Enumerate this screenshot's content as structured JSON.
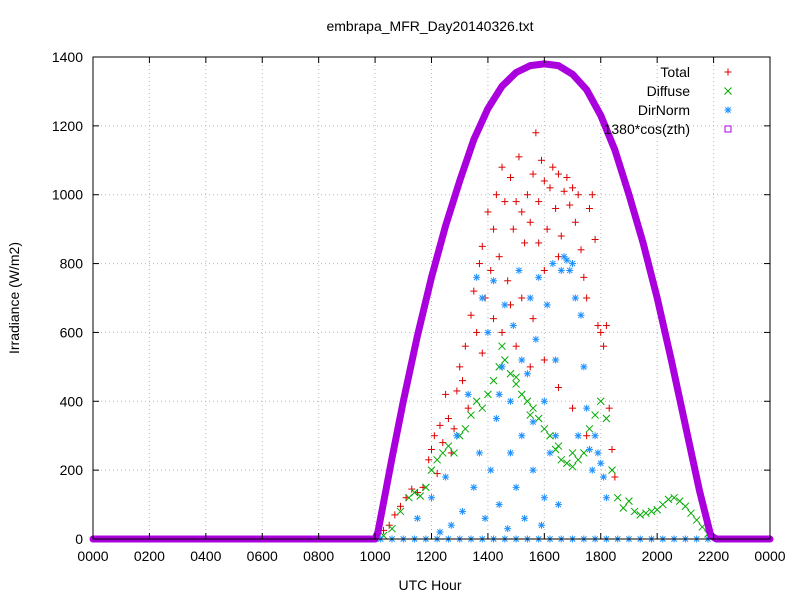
{
  "chart_data": {
    "type": "scatter",
    "title": "embrapa_MFR_Day20140326.txt",
    "xlabel": "UTC Hour",
    "ylabel": "Irradiance (W/m2)",
    "xlim": [
      0,
      2400
    ],
    "ylim": [
      0,
      1400
    ],
    "grid": true,
    "legend_position": "top-right",
    "x_tick_labels": [
      "0000",
      "0200",
      "0400",
      "0600",
      "0800",
      "1000",
      "1200",
      "1400",
      "1600",
      "1800",
      "2000",
      "2200",
      "0000"
    ],
    "y_tick_labels": [
      "0",
      "200",
      "400",
      "600",
      "800",
      "1000",
      "1200",
      "1400"
    ],
    "colors": {
      "Total": "#dd0000",
      "Diffuse": "#00aa00",
      "DirNorm": "#1e90ff",
      "1380*cos(zth)": "#aa00dd"
    },
    "series": [
      {
        "name": "Total",
        "marker": "+",
        "points": [
          [
            1010,
            15
          ],
          [
            1030,
            25
          ],
          [
            1050,
            40
          ],
          [
            1070,
            70
          ],
          [
            1090,
            95
          ],
          [
            1110,
            120
          ],
          [
            1130,
            145
          ],
          [
            1150,
            135
          ],
          [
            1170,
            150
          ],
          [
            1190,
            230
          ],
          [
            1200,
            260
          ],
          [
            1210,
            300
          ],
          [
            1220,
            190
          ],
          [
            1230,
            330
          ],
          [
            1240,
            280
          ],
          [
            1250,
            420
          ],
          [
            1260,
            350
          ],
          [
            1270,
            250
          ],
          [
            1280,
            320
          ],
          [
            1290,
            430
          ],
          [
            1300,
            500
          ],
          [
            1310,
            460
          ],
          [
            1320,
            560
          ],
          [
            1330,
            380
          ],
          [
            1340,
            650
          ],
          [
            1350,
            720
          ],
          [
            1360,
            600
          ],
          [
            1370,
            800
          ],
          [
            1380,
            850
          ],
          [
            1390,
            700
          ],
          [
            1400,
            950
          ],
          [
            1410,
            780
          ],
          [
            1420,
            900
          ],
          [
            1430,
            1000
          ],
          [
            1440,
            820
          ],
          [
            1450,
            1080
          ],
          [
            1460,
            980
          ],
          [
            1470,
            750
          ],
          [
            1480,
            1050
          ],
          [
            1490,
            900
          ],
          [
            1500,
            980
          ],
          [
            1510,
            1110
          ],
          [
            1520,
            950
          ],
          [
            1530,
            860
          ],
          [
            1540,
            1000
          ],
          [
            1550,
            920
          ],
          [
            1560,
            1060
          ],
          [
            1570,
            1180
          ],
          [
            1580,
            980
          ],
          [
            1590,
            1100
          ],
          [
            1600,
            1040
          ],
          [
            1610,
            900
          ],
          [
            1620,
            1020
          ],
          [
            1630,
            1080
          ],
          [
            1640,
            960
          ],
          [
            1650,
            1060
          ],
          [
            1660,
            880
          ],
          [
            1670,
            1010
          ],
          [
            1680,
            1050
          ],
          [
            1690,
            970
          ],
          [
            1700,
            1020
          ],
          [
            1710,
            920
          ],
          [
            1720,
            1000
          ],
          [
            1730,
            840
          ],
          [
            1740,
            760
          ],
          [
            1750,
            700
          ],
          [
            1760,
            960
          ],
          [
            1770,
            1000
          ],
          [
            1780,
            870
          ],
          [
            1790,
            620
          ],
          [
            1800,
            600
          ],
          [
            1810,
            560
          ],
          [
            1820,
            620
          ],
          [
            1830,
            380
          ],
          [
            1840,
            260
          ],
          [
            1850,
            180
          ],
          [
            1450,
            600
          ],
          [
            1500,
            560
          ],
          [
            1550,
            500
          ],
          [
            1600,
            520
          ],
          [
            1650,
            440
          ],
          [
            1700,
            380
          ],
          [
            1750,
            300
          ],
          [
            1600,
            780
          ],
          [
            1650,
            820
          ],
          [
            1520,
            700
          ],
          [
            1560,
            640
          ],
          [
            1420,
            640
          ],
          [
            1380,
            540
          ],
          [
            1480,
            680
          ],
          [
            1580,
            860
          ]
        ]
      },
      {
        "name": "Diffuse",
        "marker": "x",
        "points": [
          [
            1030,
            10
          ],
          [
            1060,
            30
          ],
          [
            1090,
            80
          ],
          [
            1120,
            120
          ],
          [
            1140,
            135
          ],
          [
            1160,
            125
          ],
          [
            1180,
            150
          ],
          [
            1200,
            200
          ],
          [
            1220,
            230
          ],
          [
            1240,
            250
          ],
          [
            1260,
            270
          ],
          [
            1280,
            250
          ],
          [
            1300,
            300
          ],
          [
            1320,
            320
          ],
          [
            1340,
            360
          ],
          [
            1360,
            400
          ],
          [
            1380,
            380
          ],
          [
            1400,
            420
          ],
          [
            1420,
            460
          ],
          [
            1440,
            500
          ],
          [
            1460,
            520
          ],
          [
            1480,
            480
          ],
          [
            1500,
            450
          ],
          [
            1520,
            420
          ],
          [
            1540,
            400
          ],
          [
            1560,
            380
          ],
          [
            1580,
            350
          ],
          [
            1600,
            320
          ],
          [
            1620,
            300
          ],
          [
            1640,
            260
          ],
          [
            1660,
            230
          ],
          [
            1680,
            220
          ],
          [
            1700,
            210
          ],
          [
            1720,
            230
          ],
          [
            1740,
            250
          ],
          [
            1760,
            320
          ],
          [
            1780,
            360
          ],
          [
            1800,
            400
          ],
          [
            1820,
            350
          ],
          [
            1840,
            200
          ],
          [
            1860,
            120
          ],
          [
            1880,
            90
          ],
          [
            1900,
            110
          ],
          [
            1920,
            80
          ],
          [
            1940,
            70
          ],
          [
            1960,
            75
          ],
          [
            1980,
            80
          ],
          [
            2000,
            85
          ],
          [
            2020,
            100
          ],
          [
            2040,
            115
          ],
          [
            2060,
            120
          ],
          [
            2080,
            110
          ],
          [
            2100,
            95
          ],
          [
            2120,
            75
          ],
          [
            2140,
            55
          ],
          [
            2160,
            35
          ],
          [
            2180,
            15
          ],
          [
            1450,
            560
          ],
          [
            1500,
            470
          ],
          [
            1550,
            360
          ],
          [
            1650,
            270
          ],
          [
            1700,
            250
          ]
        ]
      },
      {
        "name": "DirNorm",
        "marker": "*",
        "points": [
          [
            1020,
            0
          ],
          [
            1060,
            0
          ],
          [
            1100,
            0
          ],
          [
            1140,
            0
          ],
          [
            1180,
            0
          ],
          [
            1220,
            0
          ],
          [
            1260,
            0
          ],
          [
            1300,
            0
          ],
          [
            1340,
            0
          ],
          [
            1380,
            0
          ],
          [
            1420,
            0
          ],
          [
            1460,
            0
          ],
          [
            1500,
            0
          ],
          [
            1540,
            0
          ],
          [
            1580,
            0
          ],
          [
            1620,
            0
          ],
          [
            1660,
            0
          ],
          [
            1700,
            0
          ],
          [
            1740,
            0
          ],
          [
            1780,
            0
          ],
          [
            1820,
            0
          ],
          [
            1860,
            0
          ],
          [
            1900,
            0
          ],
          [
            1940,
            0
          ],
          [
            1980,
            0
          ],
          [
            2020,
            0
          ],
          [
            2060,
            0
          ],
          [
            2100,
            0
          ],
          [
            2140,
            0
          ],
          [
            2180,
            0
          ],
          [
            1150,
            60
          ],
          [
            1200,
            120
          ],
          [
            1230,
            20
          ],
          [
            1250,
            180
          ],
          [
            1270,
            40
          ],
          [
            1290,
            300
          ],
          [
            1310,
            80
          ],
          [
            1330,
            420
          ],
          [
            1350,
            150
          ],
          [
            1360,
            760
          ],
          [
            1370,
            250
          ],
          [
            1380,
            700
          ],
          [
            1390,
            60
          ],
          [
            1400,
            600
          ],
          [
            1410,
            200
          ],
          [
            1420,
            750
          ],
          [
            1430,
            350
          ],
          [
            1440,
            100
          ],
          [
            1450,
            500
          ],
          [
            1460,
            680
          ],
          [
            1470,
            30
          ],
          [
            1480,
            400
          ],
          [
            1490,
            620
          ],
          [
            1500,
            150
          ],
          [
            1510,
            780
          ],
          [
            1520,
            300
          ],
          [
            1530,
            60
          ],
          [
            1540,
            480
          ],
          [
            1550,
            700
          ],
          [
            1560,
            200
          ],
          [
            1570,
            580
          ],
          [
            1580,
            760
          ],
          [
            1590,
            40
          ],
          [
            1600,
            400
          ],
          [
            1610,
            680
          ],
          [
            1620,
            250
          ],
          [
            1630,
            800
          ],
          [
            1640,
            520
          ],
          [
            1650,
            100
          ],
          [
            1660,
            780
          ],
          [
            1670,
            820
          ],
          [
            1680,
            810
          ],
          [
            1690,
            780
          ],
          [
            1700,
            800
          ],
          [
            1710,
            700
          ],
          [
            1720,
            300
          ],
          [
            1730,
            650
          ],
          [
            1740,
            500
          ],
          [
            1750,
            380
          ],
          [
            1760,
            260
          ],
          [
            1770,
            200
          ],
          [
            1780,
            300
          ],
          [
            1790,
            250
          ],
          [
            1800,
            220
          ],
          [
            1810,
            180
          ],
          [
            1820,
            120
          ],
          [
            1480,
            250
          ],
          [
            1440,
            420
          ],
          [
            1520,
            520
          ],
          [
            1560,
            340
          ],
          [
            1600,
            120
          ],
          [
            1640,
            300
          ]
        ]
      },
      {
        "name": "1380*cos(zth)",
        "marker": "square",
        "points": [
          [
            0,
            0
          ],
          [
            200,
            0
          ],
          [
            400,
            0
          ],
          [
            600,
            0
          ],
          [
            800,
            0
          ],
          [
            1000,
            0
          ],
          [
            1010,
            20
          ],
          [
            1030,
            105
          ],
          [
            1060,
            235
          ],
          [
            1100,
            400
          ],
          [
            1150,
            590
          ],
          [
            1200,
            760
          ],
          [
            1250,
            910
          ],
          [
            1300,
            1040
          ],
          [
            1350,
            1160
          ],
          [
            1400,
            1250
          ],
          [
            1450,
            1315
          ],
          [
            1500,
            1355
          ],
          [
            1550,
            1375
          ],
          [
            1600,
            1380
          ],
          [
            1650,
            1375
          ],
          [
            1700,
            1350
          ],
          [
            1750,
            1305
          ],
          [
            1800,
            1230
          ],
          [
            1850,
            1130
          ],
          [
            1900,
            1000
          ],
          [
            1950,
            860
          ],
          [
            2000,
            700
          ],
          [
            2050,
            520
          ],
          [
            2100,
            330
          ],
          [
            2150,
            140
          ],
          [
            2190,
            10
          ],
          [
            2210,
            0
          ],
          [
            2300,
            0
          ],
          [
            2400,
            0
          ]
        ]
      }
    ]
  }
}
